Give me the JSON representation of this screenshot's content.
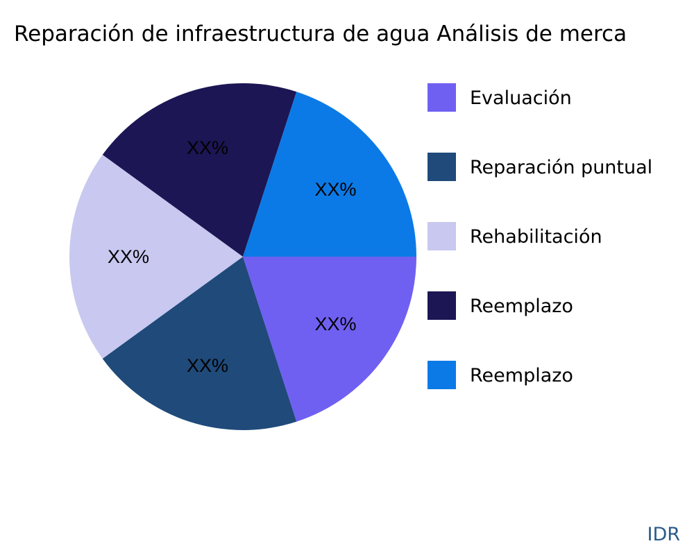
{
  "chart_data": {
    "type": "pie",
    "title": "Reparación de infraestructura de agua Análisis de merca",
    "categories": [
      "Evaluación",
      "Reparación puntual",
      "Rehabilitación",
      "Reemplazo",
      "Reemplazo"
    ],
    "values": [
      20,
      20,
      20,
      20,
      20
    ],
    "data_labels": [
      "XX%",
      "XX%",
      "XX%",
      "XX%",
      "XX%"
    ],
    "colors": [
      "#7060f2",
      "#1f4a7a",
      "#c8c8f0",
      "#1c1654",
      "#0b7ae6"
    ],
    "legend_placement": "right",
    "direction": "clockwise",
    "start_angle": "east"
  },
  "watermark": "IDR"
}
